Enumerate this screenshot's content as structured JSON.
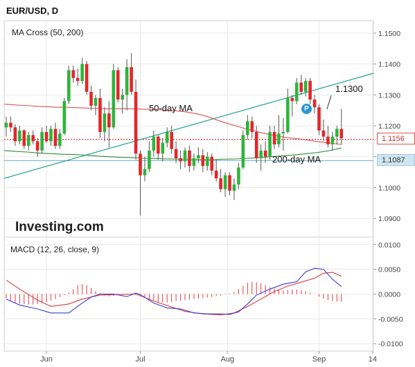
{
  "chart_data": [
    {
      "type": "candlestick",
      "title": "EUR/USD, D",
      "indicator": "MA Cross (50, 200)",
      "ylim": [
        1.084,
        1.154
      ],
      "yticks": [
        "1.1500",
        "1.1400",
        "1.1300",
        "1.1200",
        "1.1100",
        "1.1000",
        "1.0900"
      ],
      "x_tick_labels": [
        "Jun",
        "Jul",
        "Aug",
        "Sep",
        "14"
      ],
      "candles": [
        [
          1.1195,
          1.123,
          1.1165,
          1.121
        ],
        [
          1.121,
          1.123,
          1.118,
          1.1195
        ],
        [
          1.1195,
          1.1205,
          1.1135,
          1.115
        ],
        [
          1.115,
          1.12,
          1.114,
          1.1185
        ],
        [
          1.1185,
          1.119,
          1.1125,
          1.1135
        ],
        [
          1.1135,
          1.118,
          1.112,
          1.117
        ],
        [
          1.117,
          1.1185,
          1.114,
          1.115
        ],
        [
          1.115,
          1.116,
          1.11,
          1.112
        ],
        [
          1.112,
          1.1195,
          1.111,
          1.118
        ],
        [
          1.118,
          1.12,
          1.1145,
          1.115
        ],
        [
          1.115,
          1.12,
          1.1135,
          1.119
        ],
        [
          1.119,
          1.121,
          1.1125,
          1.1135
        ],
        [
          1.1135,
          1.119,
          1.1125,
          1.1175
        ],
        [
          1.1175,
          1.129,
          1.117,
          1.128
        ],
        [
          1.128,
          1.1395,
          1.127,
          1.138
        ],
        [
          1.138,
          1.1395,
          1.134,
          1.1355
        ],
        [
          1.1355,
          1.1385,
          1.133,
          1.1345
        ],
        [
          1.1345,
          1.142,
          1.1335,
          1.14
        ],
        [
          1.14,
          1.141,
          1.13,
          1.131
        ],
        [
          1.131,
          1.133,
          1.125,
          1.1265
        ],
        [
          1.1265,
          1.13,
          1.1235,
          1.129
        ],
        [
          1.129,
          1.132,
          1.116,
          1.118
        ],
        [
          1.118,
          1.126,
          1.115,
          1.124
        ],
        [
          1.124,
          1.128,
          1.113,
          1.1195
        ],
        [
          1.1195,
          1.14,
          1.119,
          1.138
        ],
        [
          1.138,
          1.139,
          1.1275,
          1.1285
        ],
        [
          1.1285,
          1.132,
          1.124,
          1.13
        ],
        [
          1.13,
          1.1415,
          1.125,
          1.139
        ],
        [
          1.139,
          1.1435,
          1.13,
          1.131
        ],
        [
          1.131,
          1.135,
          1.109,
          1.111
        ],
        [
          1.111,
          1.112,
          1.091,
          1.104
        ],
        [
          1.104,
          1.11,
          1.102,
          1.106
        ],
        [
          1.106,
          1.115,
          1.105,
          1.112
        ],
        [
          1.112,
          1.1185,
          1.11,
          1.1165
        ],
        [
          1.1165,
          1.117,
          1.109,
          1.111
        ],
        [
          1.111,
          1.116,
          1.1085,
          1.1145
        ],
        [
          1.1145,
          1.1195,
          1.113,
          1.118
        ],
        [
          1.118,
          1.12,
          1.111,
          1.1125
        ],
        [
          1.1125,
          1.115,
          1.108,
          1.1095
        ],
        [
          1.1095,
          1.112,
          1.106,
          1.1085
        ],
        [
          1.1085,
          1.113,
          1.1065,
          1.112
        ],
        [
          1.112,
          1.1135,
          1.105,
          1.107
        ],
        [
          1.107,
          1.111,
          1.1055,
          1.1095
        ],
        [
          1.1095,
          1.113,
          1.108,
          1.1105
        ],
        [
          1.1105,
          1.1125,
          1.105,
          1.107
        ],
        [
          1.107,
          1.1115,
          1.1055,
          1.11
        ],
        [
          1.11,
          1.111,
          1.104,
          1.1055
        ],
        [
          1.1055,
          1.109,
          1.102,
          1.103
        ],
        [
          1.103,
          1.106,
          1.0985,
          1.0995
        ],
        [
          1.0995,
          1.105,
          1.097,
          1.104
        ],
        [
          1.104,
          1.105,
          1.0975,
          1.099
        ],
        [
          1.099,
          1.103,
          1.096,
          1.101
        ],
        [
          1.101,
          1.108,
          1.0995,
          1.1065
        ],
        [
          1.1065,
          1.1185,
          1.106,
          1.117
        ],
        [
          1.117,
          1.1235,
          1.1155,
          1.1215
        ],
        [
          1.1215,
          1.123,
          1.116,
          1.118
        ],
        [
          1.118,
          1.12,
          1.108,
          1.1095
        ],
        [
          1.1095,
          1.114,
          1.1055,
          1.112
        ],
        [
          1.112,
          1.115,
          1.108,
          1.11
        ],
        [
          1.11,
          1.12,
          1.109,
          1.118
        ],
        [
          1.118,
          1.12,
          1.1125,
          1.114
        ],
        [
          1.114,
          1.1235,
          1.113,
          1.1175
        ],
        [
          1.1175,
          1.1225,
          1.112,
          1.118
        ],
        [
          1.118,
          1.132,
          1.1175,
          1.129
        ],
        [
          1.129,
          1.13,
          1.123,
          1.128
        ],
        [
          1.128,
          1.1355,
          1.127,
          1.134
        ],
        [
          1.134,
          1.1365,
          1.13,
          1.131
        ],
        [
          1.131,
          1.1355,
          1.1295,
          1.1345
        ],
        [
          1.1345,
          1.1355,
          1.127,
          1.1285
        ],
        [
          1.1285,
          1.13,
          1.124,
          1.126
        ],
        [
          1.126,
          1.127,
          1.117,
          1.1185
        ],
        [
          1.1185,
          1.122,
          1.115,
          1.1165
        ],
        [
          1.1165,
          1.12,
          1.113,
          1.114
        ],
        [
          1.114,
          1.118,
          1.112,
          1.1165
        ],
        [
          1.1165,
          1.12,
          1.114,
          1.119
        ],
        [
          1.119,
          1.1255,
          1.114,
          1.116
        ]
      ],
      "ma_50": [
        1.127,
        1.1268,
        1.1266,
        1.1265,
        1.1263,
        1.1262,
        1.126,
        1.126,
        1.1259,
        1.1258,
        1.1257,
        1.1256,
        1.1255,
        1.1255,
        1.1255,
        1.1255,
        1.1254,
        1.1253,
        1.1252,
        1.125,
        1.1248,
        1.1245,
        1.124,
        1.1234,
        1.1225,
        1.1215,
        1.1206,
        1.1198,
        1.119,
        1.1183,
        1.1176,
        1.117,
        1.1165,
        1.1161,
        1.1158,
        1.1154,
        1.115,
        1.1146,
        1.1143,
        1.114
      ],
      "ma_200": [
        1.112,
        1.1117,
        1.1115,
        1.1112,
        1.111,
        1.1108,
        1.1107,
        1.1105,
        1.1102,
        1.11,
        1.1098,
        1.1097,
        1.1095,
        1.1094,
        1.1093,
        1.1092,
        1.1092,
        1.1091,
        1.1091,
        1.1092,
        1.1093,
        1.1095,
        1.1097,
        1.11,
        1.1103,
        1.1106,
        1.111,
        1.1114,
        1.112,
        1.1128
      ],
      "trendline": [
        1.103,
        1.137
      ],
      "current_price": "1.1156",
      "ma200_value": "1.1087",
      "annotations": [
        "50-day MA",
        "200-day MA",
        "1.1300"
      ],
      "brand": "Investing.com",
      "marker": "P",
      "colors": {
        "up": "#2db53a",
        "down": "#e3262b",
        "ma50": "#e05050",
        "ma200": "#2f8a3a",
        "trend": "#1aa38a",
        "price_line": "#cc0000",
        "ma200_level": "#6fb2cc",
        "grid": "#e9e9e9"
      }
    },
    {
      "type": "line",
      "title": "MACD (12, 26, close, 9)",
      "ylim": [
        -0.0115,
        0.0115
      ],
      "yticks": [
        "0.0100",
        "0.0050",
        "0.0000",
        "-0.0050",
        "-0.0100"
      ],
      "histogram": [
        -0.0008,
        -0.0013,
        -0.0017,
        -0.0019,
        -0.002,
        -0.0021,
        -0.0021,
        -0.002,
        -0.0018,
        -0.0016,
        -0.0013,
        -0.001,
        -0.0006,
        -0.0002,
        0.0003,
        0.001,
        0.0018,
        0.002,
        0.0018,
        0.0012,
        0.0006,
        0.0002,
        -0.0003,
        -0.0005,
        -0.0004,
        -0.0002,
        0.0,
        0.0001,
        0.0001,
        0.0,
        -0.0003,
        -0.0006,
        -0.001,
        -0.0013,
        -0.0016,
        -0.0017,
        -0.0017,
        -0.0016,
        -0.0014,
        -0.0013,
        -0.0012,
        -0.0011,
        -0.001,
        -0.0009,
        -0.0008,
        -0.0007,
        -0.0006,
        -0.0004,
        -0.0003,
        -0.0001,
        0.0001,
        0.0004,
        0.001,
        0.0017,
        0.0023,
        0.0025,
        0.0024,
        0.0022,
        0.0018,
        0.0014,
        0.0011,
        0.0008,
        0.0007,
        0.0008,
        0.0009,
        0.0009,
        0.0008,
        0.0006,
        0.0003,
        0.0,
        -0.0005,
        -0.0009,
        -0.0012,
        -0.0014,
        -0.0015,
        -0.0015
      ],
      "macd": [
        [
          0,
          -0.001
        ],
        [
          3,
          -0.0022
        ],
        [
          7,
          -0.003
        ],
        [
          10,
          -0.0038
        ],
        [
          14,
          -0.0038
        ],
        [
          17,
          -0.0018
        ],
        [
          19,
          -0.0006
        ],
        [
          21,
          0.0
        ],
        [
          24,
          0.0
        ],
        [
          27,
          -0.0005
        ],
        [
          29,
          0.0002
        ],
        [
          30,
          -0.0001
        ],
        [
          33,
          -0.0018
        ],
        [
          36,
          -0.0028
        ],
        [
          39,
          -0.003
        ],
        [
          42,
          -0.0038
        ],
        [
          45,
          -0.004
        ],
        [
          48,
          -0.004
        ],
        [
          50,
          -0.0041
        ],
        [
          52,
          -0.0036
        ],
        [
          54,
          -0.002
        ],
        [
          56,
          -0.0002
        ],
        [
          59,
          0.001
        ],
        [
          62,
          0.002
        ],
        [
          65,
          0.0025
        ],
        [
          67,
          0.0045
        ],
        [
          69,
          0.0052
        ],
        [
          71,
          0.005
        ],
        [
          73,
          0.003
        ],
        [
          75,
          0.0015
        ]
      ],
      "signal": [
        [
          0,
          0.0028
        ],
        [
          3,
          0.001
        ],
        [
          7,
          -0.0012
        ],
        [
          10,
          -0.0025
        ],
        [
          14,
          -0.002
        ],
        [
          17,
          -0.001
        ],
        [
          21,
          -0.0002
        ],
        [
          25,
          -0.0001
        ],
        [
          29,
          0.0
        ],
        [
          33,
          -0.0014
        ],
        [
          37,
          -0.0026
        ],
        [
          40,
          -0.0035
        ],
        [
          44,
          -0.004
        ],
        [
          48,
          -0.0042
        ],
        [
          51,
          -0.0038
        ],
        [
          54,
          -0.0025
        ],
        [
          57,
          -0.001
        ],
        [
          60,
          0.0005
        ],
        [
          63,
          0.0016
        ],
        [
          66,
          0.0024
        ],
        [
          69,
          0.0032
        ],
        [
          71,
          0.0042
        ],
        [
          73,
          0.0044
        ],
        [
          75,
          0.0036
        ]
      ],
      "colors": {
        "macd": "#3a3ad8",
        "signal": "#e03a3a",
        "hist": "#e03a3a"
      }
    }
  ]
}
